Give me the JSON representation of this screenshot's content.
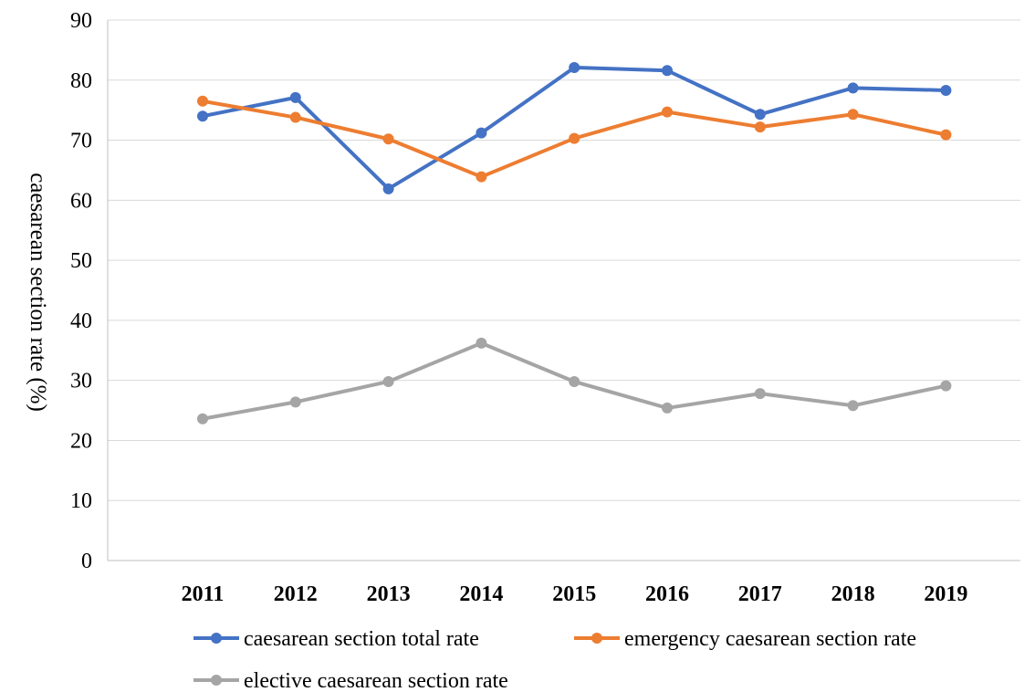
{
  "chart_data": {
    "type": "line",
    "title": "",
    "xlabel": "",
    "ylabel": "caesarean section rate (%)",
    "ylim": [
      0,
      90
    ],
    "yticks": [
      0,
      10,
      20,
      30,
      40,
      50,
      60,
      70,
      80,
      90
    ],
    "grid": true,
    "legend_position": "bottom",
    "categories": [
      "2011",
      "2012",
      "2013",
      "2014",
      "2015",
      "2016",
      "2017",
      "2018",
      "2019"
    ],
    "series": [
      {
        "name": "caesarean section total rate",
        "color": "#4472c4",
        "values": [
          74.0,
          77.1,
          61.9,
          71.2,
          82.1,
          81.6,
          74.3,
          78.7,
          78.3
        ]
      },
      {
        "name": "emergency caesarean section rate",
        "color": "#ed7d31",
        "values": [
          76.5,
          73.8,
          70.2,
          63.9,
          70.3,
          74.7,
          72.2,
          74.3,
          70.9
        ]
      },
      {
        "name": "elective caesarean section rate",
        "color": "#a5a5a5",
        "values": [
          23.6,
          26.4,
          29.8,
          36.2,
          29.8,
          25.4,
          27.8,
          25.8,
          29.1
        ]
      }
    ]
  }
}
